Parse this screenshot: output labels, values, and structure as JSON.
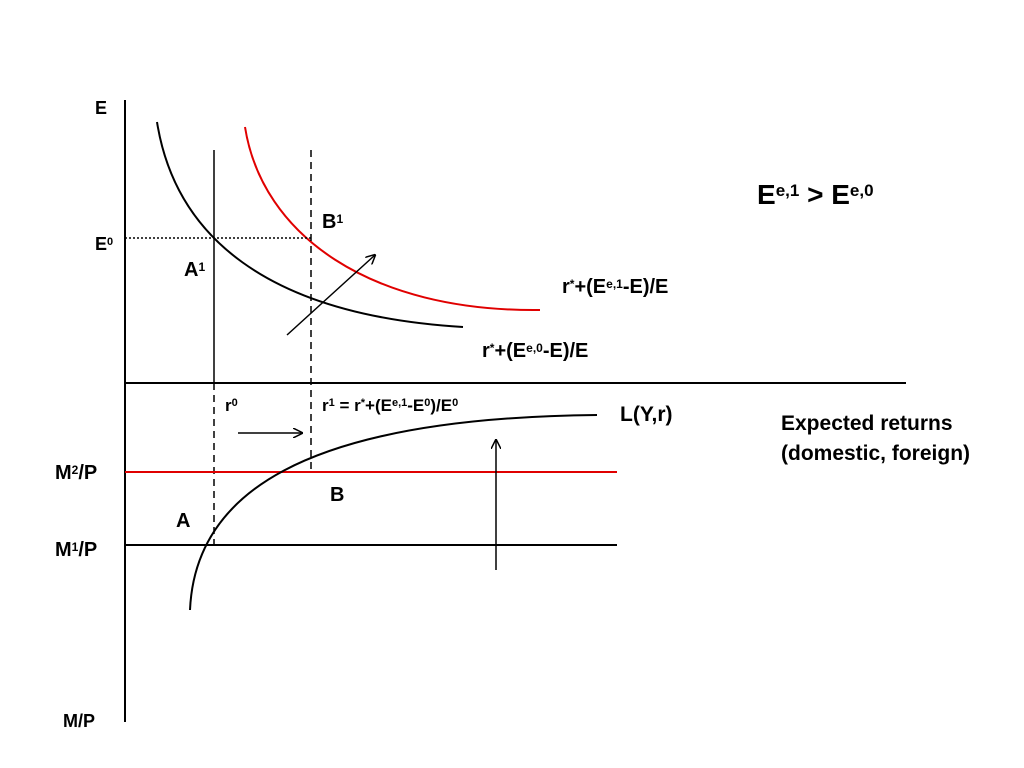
{
  "labels": {
    "e_axis": {
      "parts": [
        {
          "text": "E"
        }
      ]
    },
    "e0": {
      "parts": [
        {
          "text": "E"
        },
        {
          "text": "0",
          "sup": true
        }
      ]
    },
    "a1": {
      "parts": [
        {
          "text": "A"
        },
        {
          "text": "1",
          "sup": true
        }
      ]
    },
    "b1": {
      "parts": [
        {
          "text": "B"
        },
        {
          "text": "1",
          "sup": true
        }
      ]
    },
    "expectation": {
      "parts": [
        {
          "text": "E"
        },
        {
          "text": "e,1",
          "sup": true
        },
        {
          "text": " > E"
        },
        {
          "text": "e,0",
          "sup": true
        }
      ]
    },
    "foreign_new": {
      "parts": [
        {
          "text": "r"
        },
        {
          "text": "*",
          "sup": true
        },
        {
          "text": "+(E"
        },
        {
          "text": "e,1",
          "sup": true
        },
        {
          "text": "-E)/E"
        }
      ]
    },
    "foreign_old": {
      "parts": [
        {
          "text": "r"
        },
        {
          "text": "*",
          "sup": true
        },
        {
          "text": "+(E"
        },
        {
          "text": "e,0",
          "sup": true
        },
        {
          "text": "-E)/E"
        }
      ]
    },
    "r0": {
      "parts": [
        {
          "text": "r"
        },
        {
          "text": "0",
          "sup": true
        }
      ]
    },
    "r1": {
      "parts": [
        {
          "text": "r"
        },
        {
          "text": "1",
          "sup": true
        },
        {
          "text": " = r"
        },
        {
          "text": "*",
          "sup": true
        },
        {
          "text": "+(E"
        },
        {
          "text": "e,1",
          "sup": true
        },
        {
          "text": "-E"
        },
        {
          "text": "0",
          "sup": true
        },
        {
          "text": ")/E"
        },
        {
          "text": "0",
          "sup": true
        }
      ]
    },
    "money_demand": {
      "parts": [
        {
          "text": "L(Y,r)"
        }
      ]
    },
    "returns_line1": {
      "parts": [
        {
          "text": "Expected returns"
        }
      ]
    },
    "returns_line2": {
      "parts": [
        {
          "text": "(domestic, foreign)"
        }
      ]
    },
    "m2p": {
      "parts": [
        {
          "text": "M"
        },
        {
          "text": "2",
          "sup": true
        },
        {
          "text": "/P"
        }
      ]
    },
    "b": {
      "parts": [
        {
          "text": "B"
        }
      ]
    },
    "a": {
      "parts": [
        {
          "text": "A"
        }
      ]
    },
    "m1p": {
      "parts": [
        {
          "text": "M"
        },
        {
          "text": "1",
          "sup": true
        },
        {
          "text": "/P"
        }
      ]
    },
    "mp_axis": {
      "parts": [
        {
          "text": "M/P"
        }
      ]
    }
  }
}
